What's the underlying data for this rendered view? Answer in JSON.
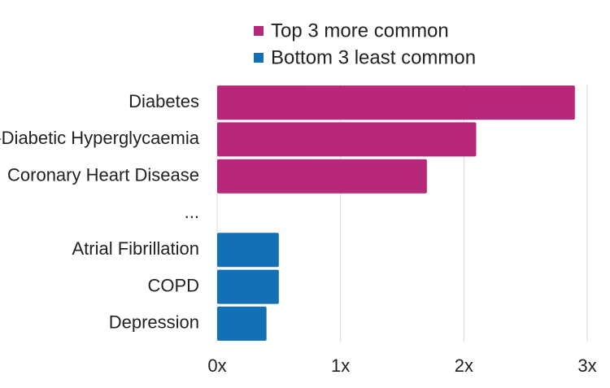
{
  "chart_data": {
    "type": "bar",
    "orientation": "horizontal",
    "categories": [
      "Diabetes",
      "Non-Diabetic Hyperglycaemia",
      "Coronary Heart Disease",
      "...",
      "Atrial Fibrillation",
      "COPD",
      "Depression"
    ],
    "series": [
      {
        "name": "Top 3 more common",
        "color": "#b8287a",
        "values": [
          2.9,
          2.1,
          1.7,
          null,
          null,
          null,
          null
        ]
      },
      {
        "name": "Bottom 3 least common",
        "color": "#1470b4",
        "values": [
          null,
          null,
          null,
          null,
          0.5,
          0.5,
          0.4
        ]
      }
    ],
    "xlim": [
      0,
      3
    ],
    "xticks": [
      {
        "value": 0,
        "label": "0x"
      },
      {
        "value": 1,
        "label": "1x"
      },
      {
        "value": 2,
        "label": "2x"
      },
      {
        "value": 3,
        "label": "3x"
      }
    ],
    "grid": true,
    "legend": "top"
  }
}
